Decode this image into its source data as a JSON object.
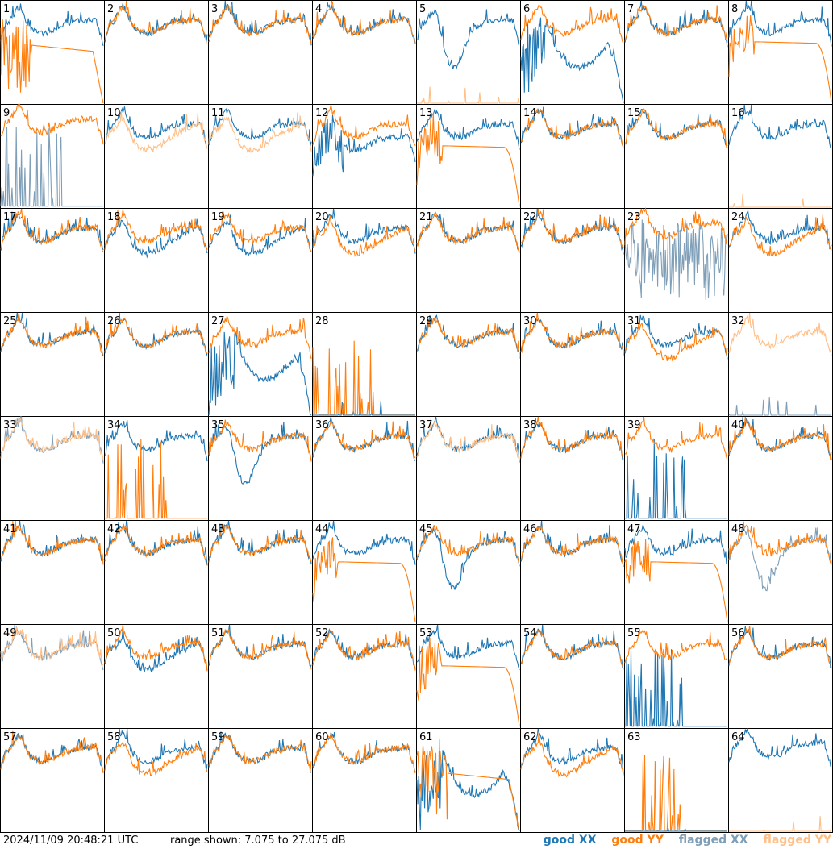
{
  "footer": {
    "timestamp": "2024/11/09 20:48:21 UTC",
    "range": "range shown: 7.075 to 27.075 dB",
    "legend_good_xx": "good XX",
    "legend_good_yy": "good YY",
    "legend_flagged_xx": "flagged XX",
    "legend_flagged_yy": "flagged YY"
  },
  "colors": {
    "good_xx": "#1f77b4",
    "good_yy": "#ff7f0e",
    "flagged_xx": "#7f9fb8",
    "flagged_yy": "#ffbf87"
  },
  "chart_data": {
    "type": "line",
    "layout": "8x8 small multiples",
    "ylim_db": [
      7.075,
      27.075
    ],
    "grid": false,
    "tiles": [
      {
        "id": 1,
        "xx": {
          "status": "good",
          "shape": "normal"
        },
        "yy": {
          "status": "good",
          "shape": "noisy_low"
        }
      },
      {
        "id": 2,
        "xx": {
          "status": "good",
          "shape": "normal"
        },
        "yy": {
          "status": "good",
          "shape": "normal"
        }
      },
      {
        "id": 3,
        "xx": {
          "status": "good",
          "shape": "normal"
        },
        "yy": {
          "status": "good",
          "shape": "normal"
        }
      },
      {
        "id": 4,
        "xx": {
          "status": "good",
          "shape": "normal"
        },
        "yy": {
          "status": "good",
          "shape": "normal"
        }
      },
      {
        "id": 5,
        "xx": {
          "status": "good",
          "shape": "dip"
        },
        "yy": {
          "status": "flagged",
          "shape": "dead"
        }
      },
      {
        "id": 6,
        "xx": {
          "status": "good",
          "shape": "sag"
        },
        "yy": {
          "status": "good",
          "shape": "normal"
        }
      },
      {
        "id": 7,
        "xx": {
          "status": "good",
          "shape": "normal"
        },
        "yy": {
          "status": "good",
          "shape": "normal"
        }
      },
      {
        "id": 8,
        "xx": {
          "status": "good",
          "shape": "normal"
        },
        "yy": {
          "status": "good",
          "shape": "smooth_drop"
        }
      },
      {
        "id": 9,
        "xx": {
          "status": "flagged",
          "shape": "spikes"
        },
        "yy": {
          "status": "good",
          "shape": "high"
        }
      },
      {
        "id": 10,
        "xx": {
          "status": "good",
          "shape": "normal"
        },
        "yy": {
          "status": "flagged",
          "shape": "low"
        }
      },
      {
        "id": 11,
        "xx": {
          "status": "good",
          "shape": "normal"
        },
        "yy": {
          "status": "flagged",
          "shape": "low"
        }
      },
      {
        "id": 12,
        "xx": {
          "status": "good",
          "shape": "noisy"
        },
        "yy": {
          "status": "good",
          "shape": "normal"
        }
      },
      {
        "id": 13,
        "xx": {
          "status": "good",
          "shape": "normal"
        },
        "yy": {
          "status": "good",
          "shape": "smooth_drop"
        }
      },
      {
        "id": 14,
        "xx": {
          "status": "good",
          "shape": "normal"
        },
        "yy": {
          "status": "good",
          "shape": "normal"
        }
      },
      {
        "id": 15,
        "xx": {
          "status": "good",
          "shape": "normal"
        },
        "yy": {
          "status": "good",
          "shape": "normal"
        }
      },
      {
        "id": 16,
        "xx": {
          "status": "good",
          "shape": "normal"
        },
        "yy": {
          "status": "flagged",
          "shape": "dead"
        }
      },
      {
        "id": 17,
        "xx": {
          "status": "good",
          "shape": "normal"
        },
        "yy": {
          "status": "good",
          "shape": "normal"
        }
      },
      {
        "id": 18,
        "xx": {
          "status": "good",
          "shape": "low"
        },
        "yy": {
          "status": "good",
          "shape": "normal"
        }
      },
      {
        "id": 19,
        "xx": {
          "status": "good",
          "shape": "low"
        },
        "yy": {
          "status": "good",
          "shape": "normal"
        }
      },
      {
        "id": 20,
        "xx": {
          "status": "good",
          "shape": "normal"
        },
        "yy": {
          "status": "good",
          "shape": "low"
        }
      },
      {
        "id": 21,
        "xx": {
          "status": "good",
          "shape": "normal"
        },
        "yy": {
          "status": "good",
          "shape": "normal"
        }
      },
      {
        "id": 22,
        "xx": {
          "status": "good",
          "shape": "normal"
        },
        "yy": {
          "status": "good",
          "shape": "normal"
        }
      },
      {
        "id": 23,
        "xx": {
          "status": "flagged",
          "shape": "noise"
        },
        "yy": {
          "status": "good",
          "shape": "high"
        }
      },
      {
        "id": 24,
        "xx": {
          "status": "good",
          "shape": "normal"
        },
        "yy": {
          "status": "good",
          "shape": "low"
        }
      },
      {
        "id": 25,
        "xx": {
          "status": "good",
          "shape": "normal"
        },
        "yy": {
          "status": "good",
          "shape": "normal"
        }
      },
      {
        "id": 26,
        "xx": {
          "status": "good",
          "shape": "normal"
        },
        "yy": {
          "status": "good",
          "shape": "normal"
        }
      },
      {
        "id": 27,
        "xx": {
          "status": "good",
          "shape": "sag"
        },
        "yy": {
          "status": "good",
          "shape": "normal"
        }
      },
      {
        "id": 28,
        "xx": {
          "status": "good",
          "shape": "dead"
        },
        "yy": {
          "status": "good",
          "shape": "spikes"
        }
      },
      {
        "id": 29,
        "xx": {
          "status": "good",
          "shape": "normal"
        },
        "yy": {
          "status": "good",
          "shape": "normal"
        }
      },
      {
        "id": 30,
        "xx": {
          "status": "good",
          "shape": "normal"
        },
        "yy": {
          "status": "good",
          "shape": "normal"
        }
      },
      {
        "id": 31,
        "xx": {
          "status": "good",
          "shape": "normal"
        },
        "yy": {
          "status": "good",
          "shape": "low"
        }
      },
      {
        "id": 32,
        "xx": {
          "status": "flagged",
          "shape": "dead"
        },
        "yy": {
          "status": "flagged",
          "shape": "normal"
        }
      },
      {
        "id": 33,
        "xx": {
          "status": "flagged",
          "shape": "normal"
        },
        "yy": {
          "status": "flagged",
          "shape": "normal"
        }
      },
      {
        "id": 34,
        "xx": {
          "status": "good",
          "shape": "normal"
        },
        "yy": {
          "status": "good",
          "shape": "spikes"
        }
      },
      {
        "id": 35,
        "xx": {
          "status": "good",
          "shape": "dip"
        },
        "yy": {
          "status": "good",
          "shape": "normal"
        }
      },
      {
        "id": 36,
        "xx": {
          "status": "good",
          "shape": "normal"
        },
        "yy": {
          "status": "good",
          "shape": "normal"
        }
      },
      {
        "id": 37,
        "xx": {
          "status": "good",
          "shape": "normal"
        },
        "yy": {
          "status": "flagged",
          "shape": "normal"
        }
      },
      {
        "id": 38,
        "xx": {
          "status": "good",
          "shape": "normal"
        },
        "yy": {
          "status": "good",
          "shape": "normal"
        }
      },
      {
        "id": 39,
        "xx": {
          "status": "good",
          "shape": "spikes"
        },
        "yy": {
          "status": "good",
          "shape": "normal"
        }
      },
      {
        "id": 40,
        "xx": {
          "status": "good",
          "shape": "normal"
        },
        "yy": {
          "status": "good",
          "shape": "normal"
        }
      },
      {
        "id": 41,
        "xx": {
          "status": "good",
          "shape": "normal"
        },
        "yy": {
          "status": "good",
          "shape": "normal"
        }
      },
      {
        "id": 42,
        "xx": {
          "status": "good",
          "shape": "normal"
        },
        "yy": {
          "status": "good",
          "shape": "normal"
        }
      },
      {
        "id": 43,
        "xx": {
          "status": "good",
          "shape": "normal"
        },
        "yy": {
          "status": "good",
          "shape": "normal"
        }
      },
      {
        "id": 44,
        "xx": {
          "status": "good",
          "shape": "normal"
        },
        "yy": {
          "status": "good",
          "shape": "smooth_drop"
        }
      },
      {
        "id": 45,
        "xx": {
          "status": "good",
          "shape": "dip"
        },
        "yy": {
          "status": "good",
          "shape": "normal"
        }
      },
      {
        "id": 46,
        "xx": {
          "status": "good",
          "shape": "normal"
        },
        "yy": {
          "status": "good",
          "shape": "normal"
        }
      },
      {
        "id": 47,
        "xx": {
          "status": "good",
          "shape": "normal"
        },
        "yy": {
          "status": "good",
          "shape": "smooth_drop"
        }
      },
      {
        "id": 48,
        "xx": {
          "status": "flagged",
          "shape": "dip"
        },
        "yy": {
          "status": "good",
          "shape": "normal"
        }
      },
      {
        "id": 49,
        "xx": {
          "status": "flagged",
          "shape": "normal"
        },
        "yy": {
          "status": "flagged",
          "shape": "normal"
        }
      },
      {
        "id": 50,
        "xx": {
          "status": "good",
          "shape": "low"
        },
        "yy": {
          "status": "good",
          "shape": "normal"
        }
      },
      {
        "id": 51,
        "xx": {
          "status": "good",
          "shape": "normal"
        },
        "yy": {
          "status": "good",
          "shape": "normal"
        }
      },
      {
        "id": 52,
        "xx": {
          "status": "good",
          "shape": "normal"
        },
        "yy": {
          "status": "good",
          "shape": "normal"
        }
      },
      {
        "id": 53,
        "xx": {
          "status": "good",
          "shape": "normal"
        },
        "yy": {
          "status": "good",
          "shape": "smooth_drop"
        }
      },
      {
        "id": 54,
        "xx": {
          "status": "good",
          "shape": "normal"
        },
        "yy": {
          "status": "good",
          "shape": "normal"
        }
      },
      {
        "id": 55,
        "xx": {
          "status": "good",
          "shape": "spikes"
        },
        "yy": {
          "status": "good",
          "shape": "normal"
        }
      },
      {
        "id": 56,
        "xx": {
          "status": "good",
          "shape": "normal"
        },
        "yy": {
          "status": "good",
          "shape": "normal"
        }
      },
      {
        "id": 57,
        "xx": {
          "status": "good",
          "shape": "normal"
        },
        "yy": {
          "status": "good",
          "shape": "normal"
        }
      },
      {
        "id": 58,
        "xx": {
          "status": "good",
          "shape": "normal"
        },
        "yy": {
          "status": "good",
          "shape": "low"
        }
      },
      {
        "id": 59,
        "xx": {
          "status": "good",
          "shape": "normal"
        },
        "yy": {
          "status": "good",
          "shape": "normal"
        }
      },
      {
        "id": 60,
        "xx": {
          "status": "good",
          "shape": "normal"
        },
        "yy": {
          "status": "good",
          "shape": "normal"
        }
      },
      {
        "id": 61,
        "xx": {
          "status": "good",
          "shape": "sag"
        },
        "yy": {
          "status": "good",
          "shape": "noisy_low"
        }
      },
      {
        "id": 62,
        "xx": {
          "status": "good",
          "shape": "normal"
        },
        "yy": {
          "status": "good",
          "shape": "low"
        }
      },
      {
        "id": 63,
        "xx": {
          "status": "good",
          "shape": "dead"
        },
        "yy": {
          "status": "good",
          "shape": "spikes"
        }
      },
      {
        "id": 64,
        "xx": {
          "status": "good",
          "shape": "high"
        },
        "yy": {
          "status": "flagged",
          "shape": "dead"
        }
      }
    ]
  }
}
